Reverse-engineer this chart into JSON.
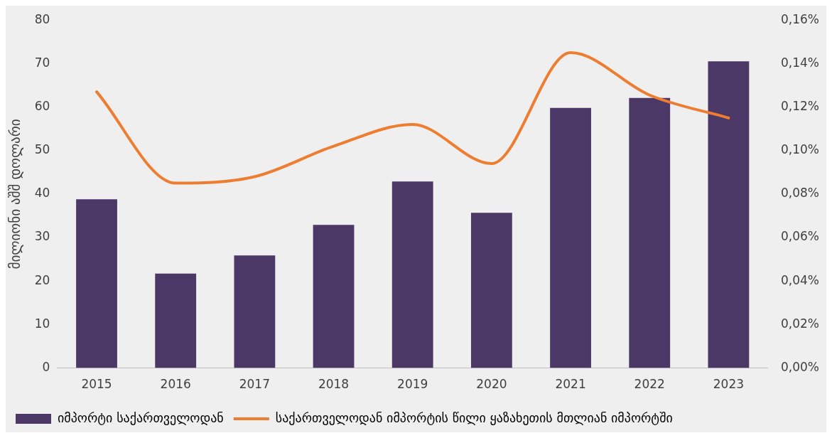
{
  "chart_data": {
    "type": "bar",
    "categories": [
      "2015",
      "2016",
      "2017",
      "2018",
      "2019",
      "2020",
      "2021",
      "2022",
      "2023"
    ],
    "ylabel": "მილიონი აშშ დოლარი",
    "series": [
      {
        "name": "იმპორტი საქართველოდან",
        "color": "#4b3867",
        "values": [
          38.8,
          21.7,
          25.9,
          32.9,
          42.9,
          35.7,
          59.8,
          62.1,
          70.5
        ]
      },
      {
        "name": "საქართველოდან იმპორტის წილი ყაზახეთის მთლიან იმპორტში",
        "type": "line",
        "axis": "y2",
        "color": "#ed7d31",
        "values": [
          0.127,
          0.085,
          0.088,
          0.102,
          0.112,
          0.094,
          0.145,
          0.1255,
          0.115
        ]
      }
    ],
    "ylim": [
      0,
      80
    ],
    "yticks": [
      0,
      10,
      20,
      30,
      40,
      50,
      60,
      70,
      80
    ],
    "y2lim": [
      0,
      0.16
    ],
    "y2ticks": [
      {
        "value": 0,
        "label": "0,00%"
      },
      {
        "value": 0.02,
        "label": "0,02%"
      },
      {
        "value": 0.04,
        "label": "0,04%"
      },
      {
        "value": 0.06,
        "label": "0,06%"
      },
      {
        "value": 0.08,
        "label": "0,08%"
      },
      {
        "value": 0.1,
        "label": "0,10%"
      },
      {
        "value": 0.12,
        "label": "0,12%"
      },
      {
        "value": 0.14,
        "label": "0,14%"
      },
      {
        "value": 0.16,
        "label": "0,16%"
      }
    ],
    "grid": false,
    "legend": "bottom",
    "marker": "none",
    "line_style": "solid"
  }
}
